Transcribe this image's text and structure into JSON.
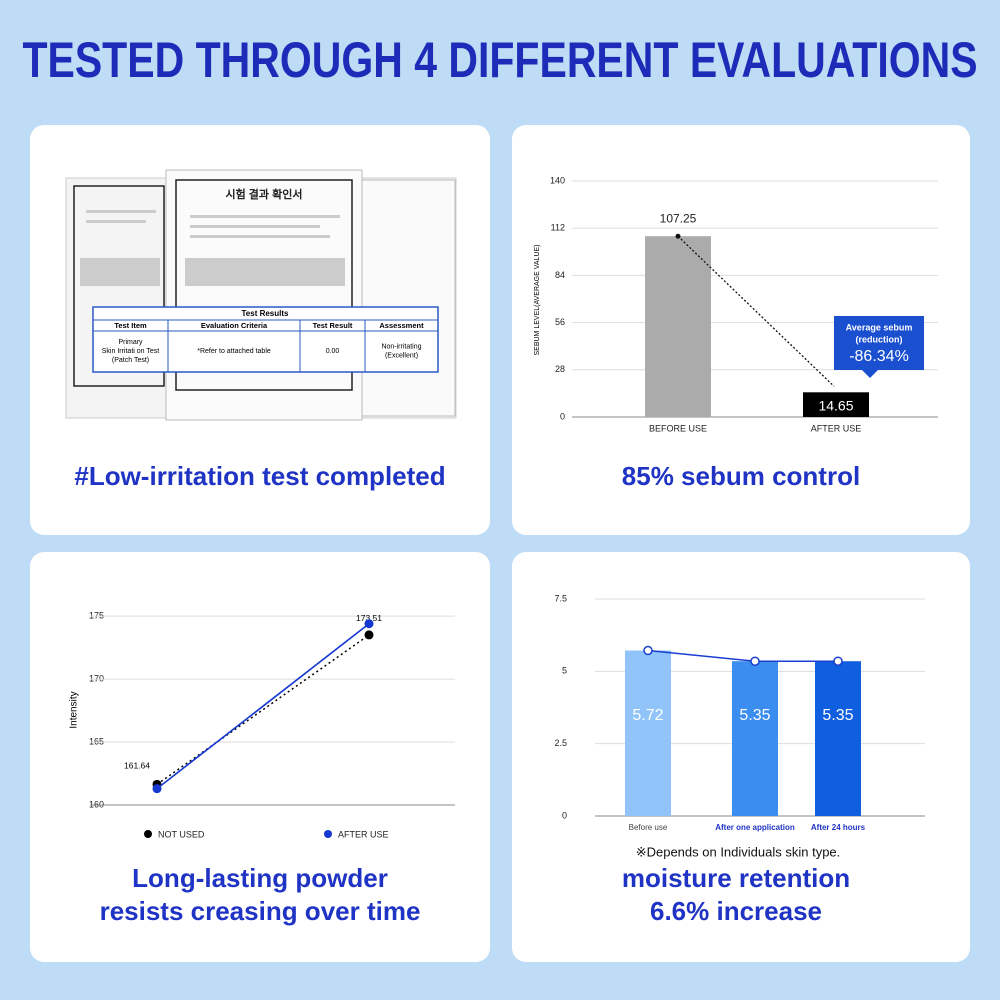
{
  "title": "TESTED THROUGH 4 DIFFERENT EVALUATIONS",
  "captions": [
    [
      "#Low-irritation test completed"
    ],
    [
      "85% sebum control"
    ],
    [
      "Long-lasting powder",
      "resists creasing over time"
    ],
    [
      "moisture retention",
      "6.6% increase"
    ]
  ],
  "certificate": {
    "heading": "시험 결과 확인서",
    "table_title": "Test Results",
    "headers": [
      "Test Item",
      "Evaluation Criteria",
      "Test Result",
      "Assessment"
    ],
    "row": [
      [
        "Primary",
        "Skin Irritati on Test",
        "(Patch Test)"
      ],
      [
        "*Refer to attached table"
      ],
      [
        "0.00"
      ],
      [
        "Non-irritating",
        "(Excellent)"
      ]
    ]
  },
  "chart_data": [
    {
      "type": "bar",
      "categories": [
        "BEFORE USE",
        "AFTER USE"
      ],
      "values": [
        107.25,
        14.65
      ],
      "colors": [
        "#ababab",
        "#000000"
      ],
      "ylim": [
        0,
        140
      ],
      "yticks": [
        0,
        28,
        56,
        84,
        112,
        140
      ],
      "ylabel": "SEBUM LEVEL(AVERAGE VALUE)",
      "grid": true,
      "annotation": [
        "Average sebum",
        "(reduction)",
        "-86.34%"
      ],
      "annotation_color": "#1a4fd0"
    },
    {
      "type": "line",
      "ylabel": "Intensity",
      "ylim": [
        160,
        177
      ],
      "yticks": [
        160,
        165,
        170,
        175
      ],
      "grid": true,
      "series": [
        {
          "name": "NOT USED",
          "color": "#000000",
          "values": [
            161.64,
            173.51
          ],
          "dash": true,
          "labels": true
        },
        {
          "name": "AFTER USE",
          "color": "#1438d0",
          "values": [
            161.3,
            174.4
          ],
          "dash": false,
          "labels": false
        }
      ]
    },
    {
      "type": "bar-line",
      "categories": [
        "Before use",
        "After one application",
        "After 24 hours"
      ],
      "values": [
        5.72,
        5.35,
        5.35
      ],
      "colors": [
        "#90c4fa",
        "#3b8ef0",
        "#0f5fe0"
      ],
      "line_color": "#1a3fd0",
      "ylim": [
        0,
        7.5
      ],
      "yticks": [
        0,
        2.5,
        5,
        7.5
      ],
      "grid": true,
      "note": "※Depends on Individuals skin type."
    }
  ]
}
